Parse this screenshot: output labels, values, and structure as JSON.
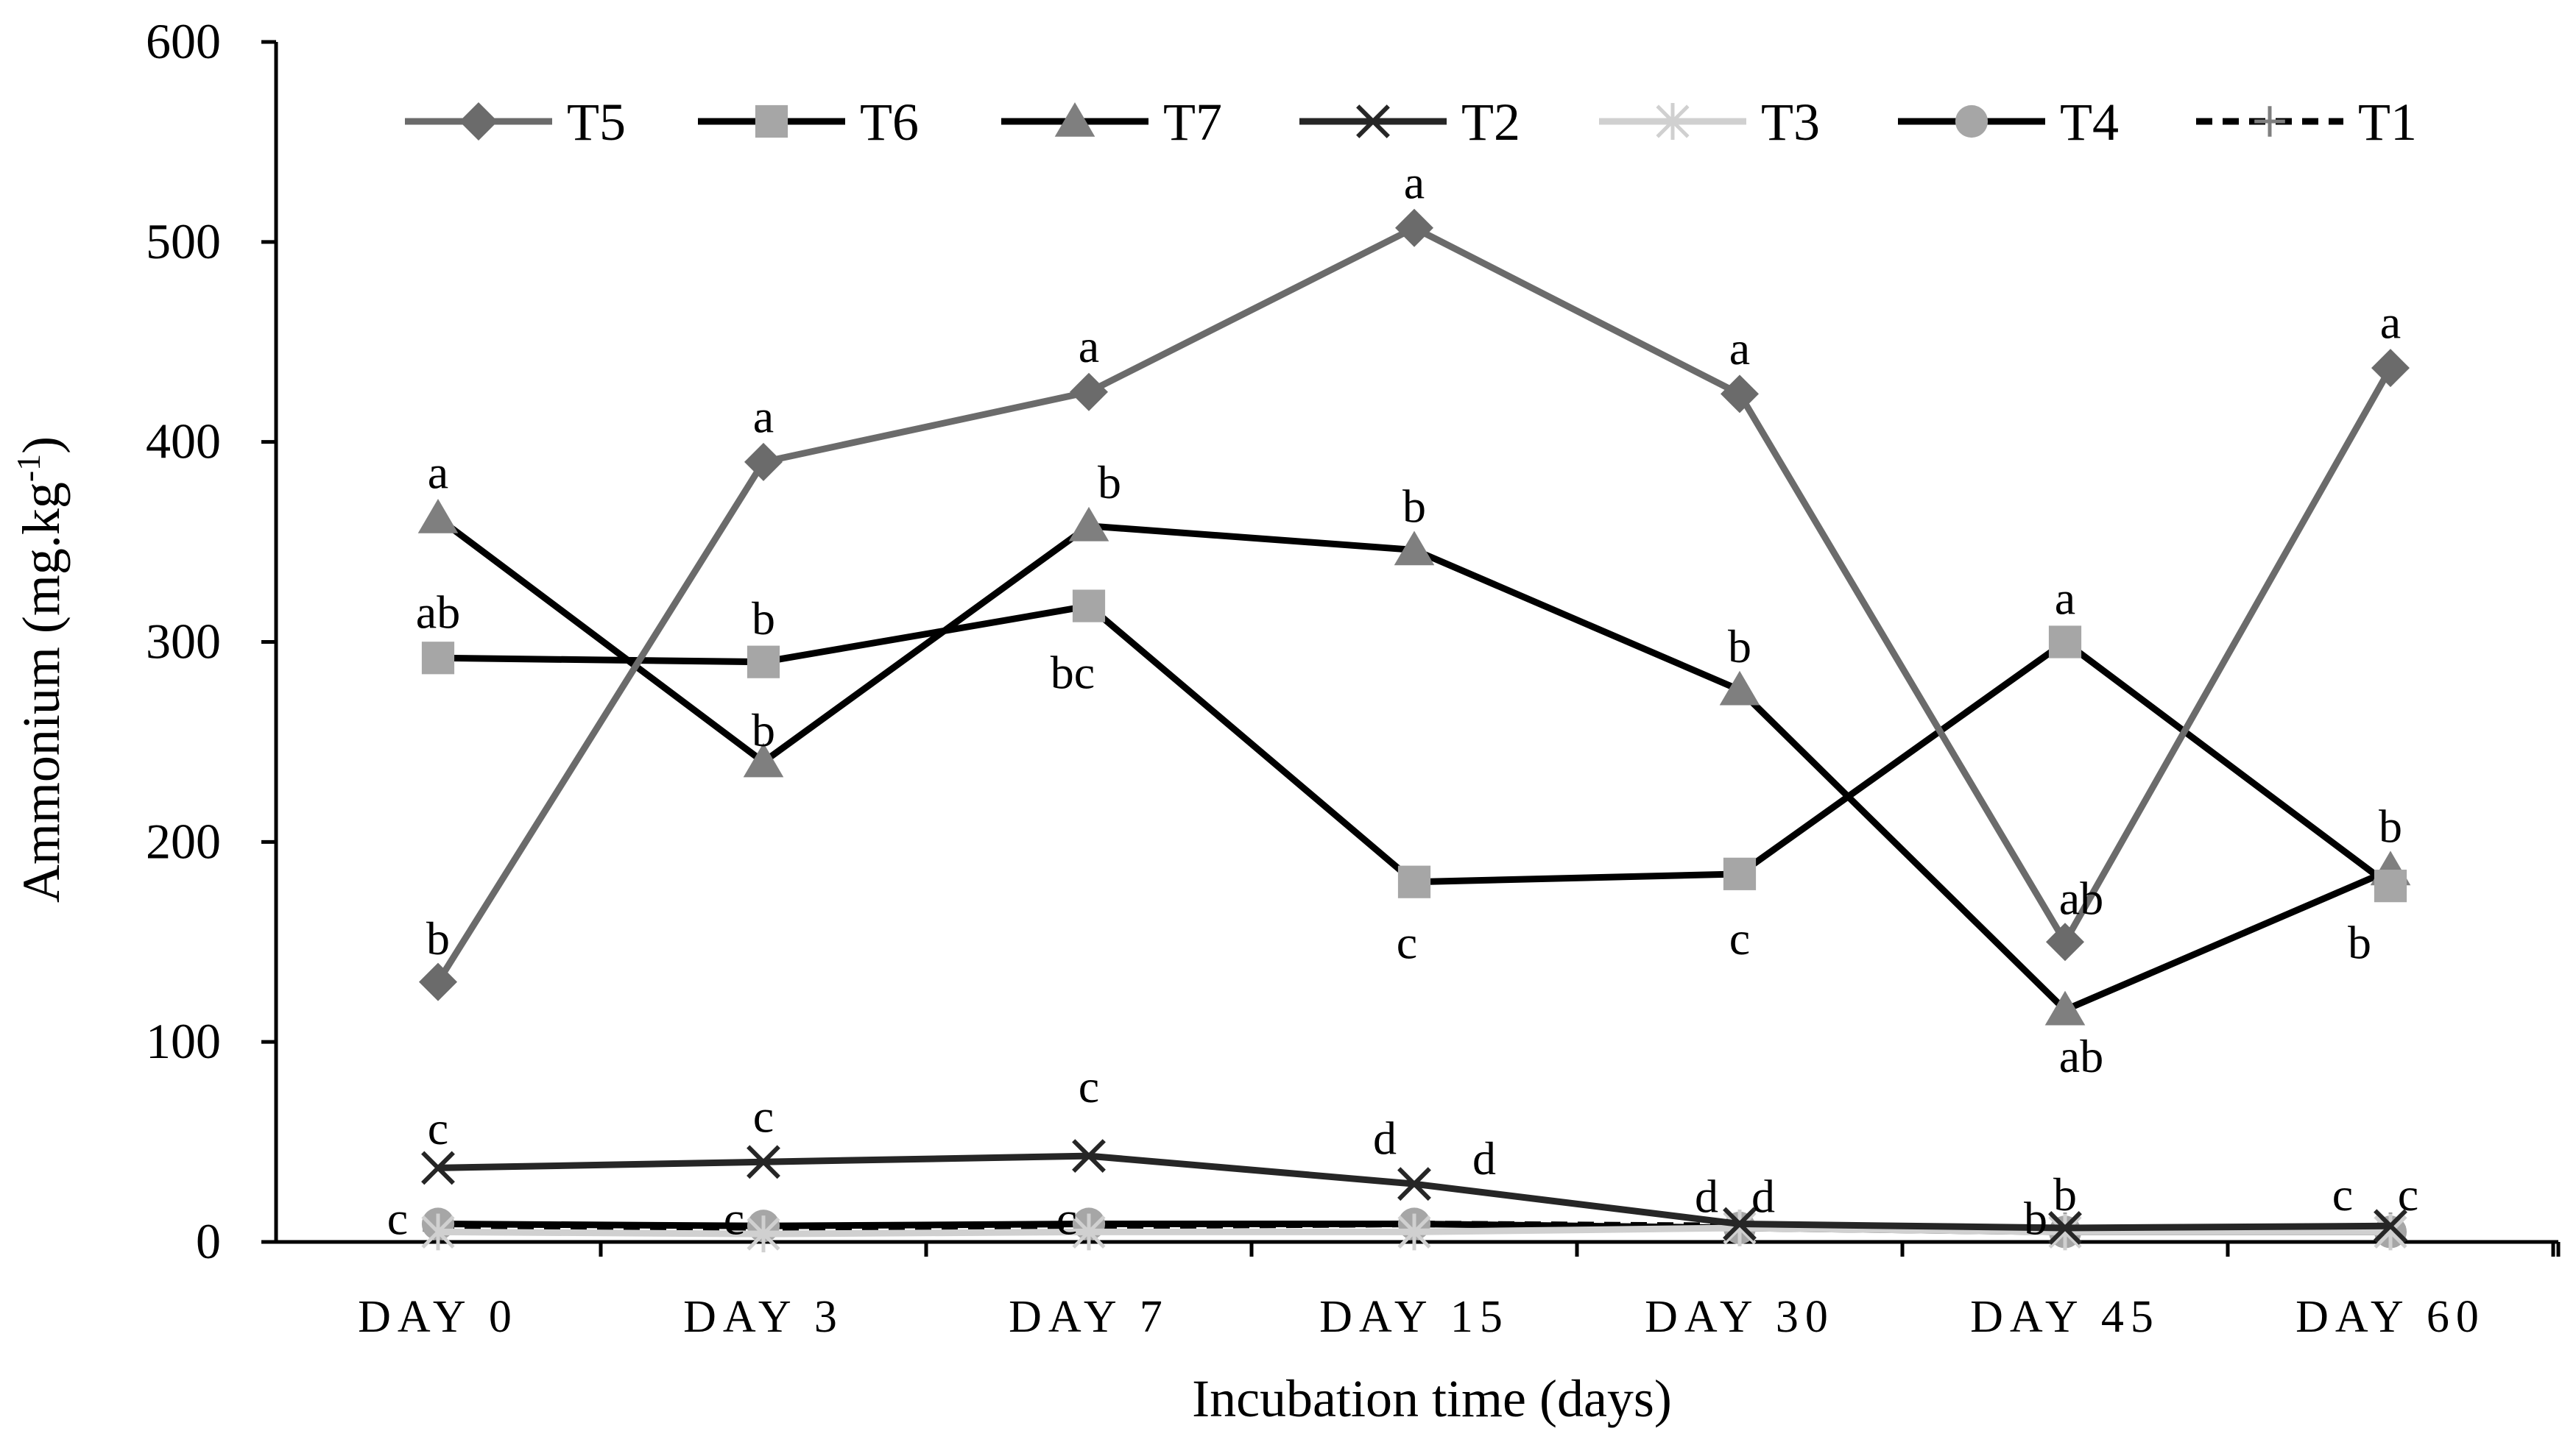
{
  "chart_data": {
    "type": "line",
    "title": "",
    "xlabel": "Incubation time (days)",
    "ylabel_main": "Ammonium (mg.kg",
    "ylabel_sup": "-1",
    "ylabel_close": ")",
    "ylim": [
      0,
      600
    ],
    "yticks": [
      "0",
      "100",
      "200",
      "300",
      "400",
      "500",
      "600"
    ],
    "categories": [
      "DAY 0",
      "DAY 3",
      "DAY 7",
      "DAY 15",
      "DAY 30",
      "DAY 45",
      "DAY 60"
    ],
    "grid": false,
    "legend_position": "top",
    "series": [
      {
        "name": "T5",
        "color": "#6b6b6b",
        "marker": "diamond",
        "dash": "solid",
        "values": [
          130,
          390,
          425,
          507,
          424,
          150,
          437
        ]
      },
      {
        "name": "T6",
        "color": "#000000",
        "marker": "square",
        "markerColor": "#a6a6a6",
        "dash": "solid",
        "values": [
          292,
          290,
          318,
          180,
          184,
          300,
          178
        ]
      },
      {
        "name": "T7",
        "color": "#000000",
        "marker": "triangle",
        "markerColor": "#7f7f7f",
        "dash": "solid",
        "values": [
          362,
          240,
          358,
          346,
          276,
          116,
          186
        ]
      },
      {
        "name": "T2",
        "color": "#262626",
        "marker": "x",
        "dash": "solid",
        "values": [
          37,
          40,
          43,
          29,
          9,
          7,
          8
        ]
      },
      {
        "name": "T3",
        "color": "#d0d0d0",
        "marker": "star",
        "dash": "solid",
        "values": [
          5,
          4,
          5,
          5,
          7,
          5,
          5
        ]
      },
      {
        "name": "T4",
        "color": "#000000",
        "marker": "circle",
        "markerColor": "#a6a6a6",
        "dash": "solid",
        "values": [
          9,
          8,
          9,
          9,
          7,
          5,
          5
        ]
      },
      {
        "name": "T1",
        "color": "#000000",
        "marker": "plus",
        "markerColor": "#7f7f7f",
        "dash": "dashed",
        "values": [
          6,
          6,
          8,
          9,
          8,
          7,
          7
        ]
      }
    ],
    "annotations": [
      {
        "text": "a",
        "cat": 0,
        "value": 385
      },
      {
        "text": "ab",
        "cat": 0,
        "value": 315
      },
      {
        "text": "b",
        "cat": 0,
        "value": 152
      },
      {
        "text": "c",
        "cat": 0,
        "value": 57
      },
      {
        "text": "c",
        "cat": 0,
        "value": 12,
        "dx": -55
      },
      {
        "text": "a",
        "cat": 1,
        "value": 413
      },
      {
        "text": "b",
        "cat": 1,
        "value": 312
      },
      {
        "text": "b",
        "cat": 1,
        "value": 256
      },
      {
        "text": "c",
        "cat": 1,
        "value": 63
      },
      {
        "text": "c",
        "cat": 1,
        "value": 12,
        "dx": -40
      },
      {
        "text": "a",
        "cat": 2,
        "value": 448
      },
      {
        "text": "b",
        "cat": 2,
        "value": 380,
        "dx": 28
      },
      {
        "text": "bc",
        "cat": 2,
        "value": 285,
        "dx": -22
      },
      {
        "text": "c",
        "cat": 2,
        "value": 78
      },
      {
        "text": "c",
        "cat": 2,
        "value": 12,
        "dx": -30
      },
      {
        "text": "a",
        "cat": 3,
        "value": 530
      },
      {
        "text": "b",
        "cat": 3,
        "value": 368
      },
      {
        "text": "c",
        "cat": 3,
        "value": 150,
        "dx": -10
      },
      {
        "text": "d",
        "cat": 3,
        "value": 52,
        "dx": -40
      },
      {
        "text": "d",
        "cat": 3,
        "value": 42,
        "dx": 95
      },
      {
        "text": "a",
        "cat": 4,
        "value": 447
      },
      {
        "text": "b",
        "cat": 4,
        "value": 298
      },
      {
        "text": "c",
        "cat": 4,
        "value": 152
      },
      {
        "text": "d",
        "cat": 4,
        "value": 23,
        "dx": -45
      },
      {
        "text": "d",
        "cat": 4,
        "value": 23,
        "dx": 32
      },
      {
        "text": "a",
        "cat": 5,
        "value": 322
      },
      {
        "text": "ab",
        "cat": 5,
        "value": 172,
        "dx": 22
      },
      {
        "text": "ab",
        "cat": 5,
        "value": 93,
        "dx": 22
      },
      {
        "text": "b",
        "cat": 5,
        "value": 24
      },
      {
        "text": "b",
        "cat": 5,
        "value": 12,
        "dx": -40
      },
      {
        "text": "a",
        "cat": 6,
        "value": 460
      },
      {
        "text": "b",
        "cat": 6,
        "value": 208
      },
      {
        "text": "b",
        "cat": 6,
        "value": 150,
        "dx": -42
      },
      {
        "text": "c",
        "cat": 6,
        "value": 24,
        "dx": 24
      },
      {
        "text": "c",
        "cat": 6,
        "value": 24,
        "dx": -65
      }
    ]
  }
}
